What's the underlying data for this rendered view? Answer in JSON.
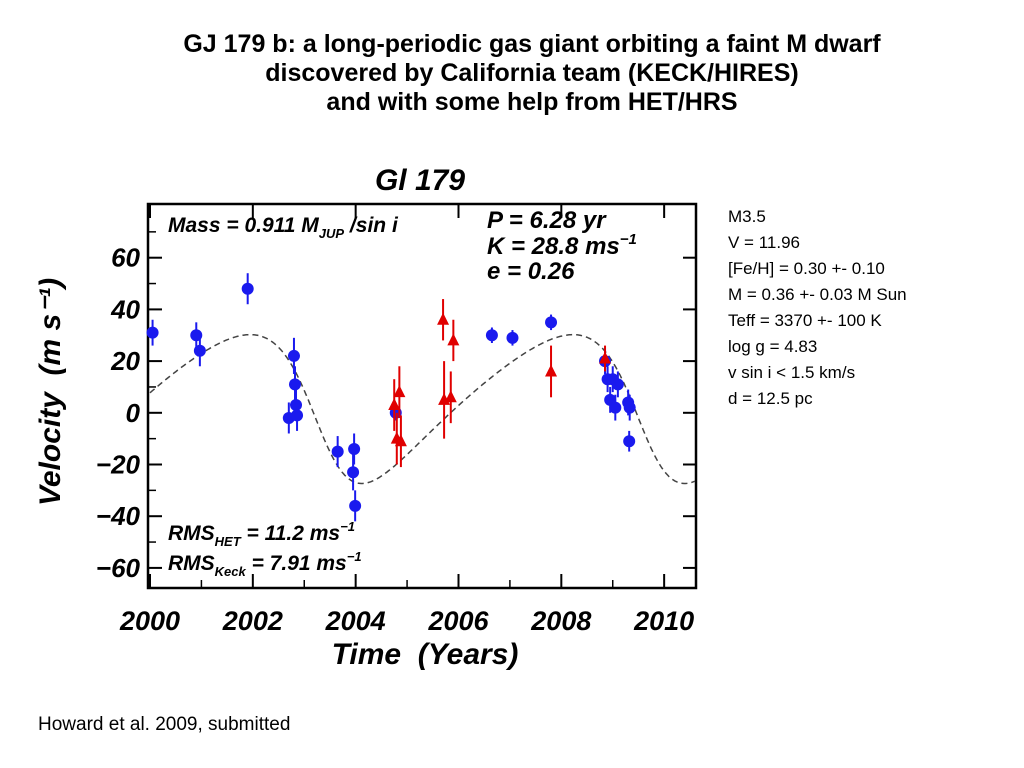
{
  "slide": {
    "title_lines": [
      "GJ 179 b: a long-periodic gas giant orbiting a faint M dwarf",
      "discovered by California team (KECK/HIRES)",
      "and with some help from HET/HRS"
    ],
    "properties": [
      "M3.5",
      "V = 11.96",
      "[Fe/H] = 0.30 +- 0.10",
      "M = 0.36 +- 0.03 M Sun",
      "Teff = 3370 +- 100 K",
      "log g = 4.83",
      "v sin i < 1.5 km/s",
      "d = 12.5 pc"
    ],
    "citation": "Howard et al. 2009, submitted"
  },
  "chart_data": {
    "type": "scatter",
    "title": "Gl 179",
    "xlabel": "Time  (Years)",
    "ylabel": "Velocity  (m s⁻¹)",
    "xlim": [
      2000,
      2010.6
    ],
    "ylim": [
      -67,
      80
    ],
    "xticks": [
      2000,
      2002,
      2004,
      2006,
      2008,
      2010
    ],
    "yticks": [
      -60,
      -40,
      -20,
      0,
      20,
      40,
      60
    ],
    "annotations": {
      "mass": "Mass = 0.911 M",
      "mass_sub": "JUP",
      "mass_tail": " /sin i",
      "period": "P = 6.28 yr",
      "amplitude": "K = 28.8 ms",
      "amplitude_sup": "−1",
      "eccentricity": "e = 0.26",
      "rms_het": "RMS",
      "rms_het_sub": "HET",
      "rms_het_val": " = 11.2 ms",
      "rms_keck": "RMS",
      "rms_keck_sub": "Keck",
      "rms_keck_val": " = 7.91 ms",
      "rms_sup": "−1"
    },
    "colors": {
      "keck": "#1a1aee",
      "het": "#e00000",
      "model": "#444444"
    },
    "series": [
      {
        "marker": "circle",
        "points": [
          {
            "x": 2000.05,
            "y": 31,
            "err": 5
          },
          {
            "x": 2000.9,
            "y": 30,
            "err": 5
          },
          {
            "x": 2000.97,
            "y": 24,
            "err": 6
          },
          {
            "x": 2001.9,
            "y": 48,
            "err": 6
          },
          {
            "x": 2002.7,
            "y": -2,
            "err": 6
          },
          {
            "x": 2002.8,
            "y": 22,
            "err": 7
          },
          {
            "x": 2002.82,
            "y": 11,
            "err": 7
          },
          {
            "x": 2002.84,
            "y": 3,
            "err": 6
          },
          {
            "x": 2002.86,
            "y": -1,
            "err": 6
          },
          {
            "x": 2003.65,
            "y": -15,
            "err": 6
          },
          {
            "x": 2003.95,
            "y": -23,
            "err": 7
          },
          {
            "x": 2003.97,
            "y": -14,
            "err": 6
          },
          {
            "x": 2003.99,
            "y": -36,
            "err": 6
          },
          {
            "x": 2004.78,
            "y": 0,
            "err": 3
          },
          {
            "x": 2006.65,
            "y": 30,
            "err": 3
          },
          {
            "x": 2007.05,
            "y": 29,
            "err": 3
          },
          {
            "x": 2007.8,
            "y": 35,
            "err": 3
          },
          {
            "x": 2008.85,
            "y": 20,
            "err": 5
          },
          {
            "x": 2008.9,
            "y": 13,
            "err": 5
          },
          {
            "x": 2008.95,
            "y": 5,
            "err": 5
          },
          {
            "x": 2009.0,
            "y": 13,
            "err": 5
          },
          {
            "x": 2009.05,
            "y": 2,
            "err": 5
          },
          {
            "x": 2009.1,
            "y": 11,
            "err": 5
          },
          {
            "x": 2009.3,
            "y": 4,
            "err": 5
          },
          {
            "x": 2009.33,
            "y": 2,
            "err": 5
          },
          {
            "x": 2009.32,
            "y": -11,
            "err": 4
          }
        ]
      },
      {
        "marker": "triangle",
        "points": [
          {
            "x": 2004.75,
            "y": 3,
            "err": 10
          },
          {
            "x": 2004.8,
            "y": -10,
            "err": 10
          },
          {
            "x": 2004.85,
            "y": 8,
            "err": 10
          },
          {
            "x": 2004.88,
            "y": -11,
            "err": 10
          },
          {
            "x": 2005.7,
            "y": 36,
            "err": 8
          },
          {
            "x": 2005.72,
            "y": 5,
            "err": 15
          },
          {
            "x": 2005.85,
            "y": 6,
            "err": 10
          },
          {
            "x": 2005.9,
            "y": 28,
            "err": 8
          },
          {
            "x": 2007.8,
            "y": 16,
            "err": 10
          },
          {
            "x": 2008.85,
            "y": 21,
            "err": 5
          }
        ]
      }
    ],
    "model": {
      "type": "keplerian",
      "period_yr": 6.28,
      "K": 28.8,
      "e": 0.26,
      "omega_deg": 110,
      "t_peri": 2003.35,
      "offset": 4
    }
  }
}
